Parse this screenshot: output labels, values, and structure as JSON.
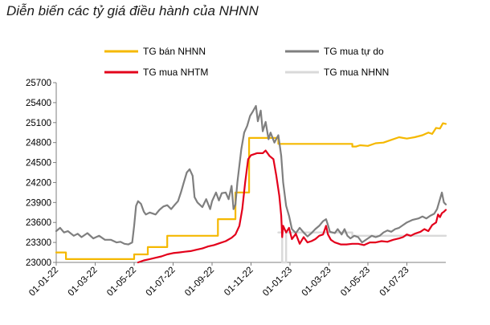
{
  "chart_data": {
    "type": "line",
    "title": "Diễn biến các tỷ giá điều hành của NHNN",
    "xlabel": "",
    "ylabel": "",
    "ylim": [
      23000,
      25700
    ],
    "yticks": [
      23000,
      23300,
      23600,
      23900,
      24200,
      24500,
      24800,
      25100,
      25400,
      25700
    ],
    "xlim": [
      0,
      20
    ],
    "xticks": [
      {
        "x": 0,
        "label": "01-01-22"
      },
      {
        "x": 2,
        "label": "01-03-22"
      },
      {
        "x": 4,
        "label": "01-05-22"
      },
      {
        "x": 6,
        "label": "01-07-22"
      },
      {
        "x": 8,
        "label": "01-09-22"
      },
      {
        "x": 10,
        "label": "01-11-22"
      },
      {
        "x": 12,
        "label": "01-01-23"
      },
      {
        "x": 14,
        "label": "01-03-23"
      },
      {
        "x": 16,
        "label": "01-05-23"
      },
      {
        "x": 18,
        "label": "01-07-23"
      }
    ],
    "legend_position": "top",
    "grid": false,
    "series": [
      {
        "name": "TG bán NHNN",
        "color": "#f5b800",
        "width": 2.2,
        "step": true,
        "points": [
          [
            0,
            23150
          ],
          [
            0.5,
            23150
          ],
          [
            0.5,
            23050
          ],
          [
            4,
            23050
          ],
          [
            4,
            23120
          ],
          [
            4.7,
            23120
          ],
          [
            4.7,
            23230
          ],
          [
            5.7,
            23230
          ],
          [
            5.7,
            23400
          ],
          [
            8.3,
            23400
          ],
          [
            8.3,
            23650
          ],
          [
            9.2,
            23650
          ],
          [
            9.2,
            24050
          ],
          [
            9.9,
            24050
          ],
          [
            9.9,
            24870
          ],
          [
            11.4,
            24870
          ],
          [
            11.4,
            24780
          ],
          [
            15.2,
            24780
          ],
          [
            15.2,
            24740
          ],
          [
            15.4,
            24740
          ],
          [
            15.6,
            24760
          ],
          [
            16,
            24750
          ],
          [
            16.4,
            24790
          ],
          [
            16.8,
            24800
          ],
          [
            17.2,
            24840
          ],
          [
            17.6,
            24880
          ],
          [
            18,
            24860
          ],
          [
            18.4,
            24880
          ],
          [
            18.8,
            24910
          ],
          [
            19.1,
            24950
          ],
          [
            19.3,
            24930
          ],
          [
            19.5,
            25020
          ],
          [
            19.7,
            25010
          ],
          [
            19.85,
            25090
          ],
          [
            20,
            25080
          ]
        ]
      },
      {
        "name": "TG mua tự do",
        "color": "#7f7f7f",
        "width": 2.2,
        "step": false,
        "points": [
          [
            0,
            23470
          ],
          [
            0.2,
            23520
          ],
          [
            0.4,
            23450
          ],
          [
            0.6,
            23470
          ],
          [
            0.9,
            23400
          ],
          [
            1.1,
            23430
          ],
          [
            1.3,
            23380
          ],
          [
            1.6,
            23440
          ],
          [
            1.9,
            23360
          ],
          [
            2.2,
            23400
          ],
          [
            2.5,
            23340
          ],
          [
            2.8,
            23340
          ],
          [
            3.1,
            23300
          ],
          [
            3.3,
            23310
          ],
          [
            3.5,
            23280
          ],
          [
            3.7,
            23270
          ],
          [
            3.9,
            23300
          ],
          [
            4,
            23550
          ],
          [
            4.1,
            23850
          ],
          [
            4.2,
            23920
          ],
          [
            4.35,
            23880
          ],
          [
            4.5,
            23760
          ],
          [
            4.6,
            23720
          ],
          [
            4.8,
            23750
          ],
          [
            5.1,
            23720
          ],
          [
            5.3,
            23790
          ],
          [
            5.5,
            23840
          ],
          [
            5.7,
            23860
          ],
          [
            5.9,
            23800
          ],
          [
            6.1,
            23870
          ],
          [
            6.25,
            23920
          ],
          [
            6.4,
            24050
          ],
          [
            6.55,
            24200
          ],
          [
            6.7,
            24350
          ],
          [
            6.85,
            24400
          ],
          [
            7,
            24300
          ],
          [
            7.1,
            23980
          ],
          [
            7.25,
            23900
          ],
          [
            7.5,
            23830
          ],
          [
            7.7,
            23950
          ],
          [
            7.9,
            23800
          ],
          [
            8,
            23920
          ],
          [
            8.2,
            24050
          ],
          [
            8.35,
            23930
          ],
          [
            8.5,
            24040
          ],
          [
            8.7,
            24050
          ],
          [
            8.85,
            23950
          ],
          [
            9,
            24150
          ],
          [
            9.1,
            23800
          ],
          [
            9.2,
            23870
          ],
          [
            9.3,
            24200
          ],
          [
            9.5,
            24700
          ],
          [
            9.65,
            24950
          ],
          [
            9.8,
            25050
          ],
          [
            9.95,
            25200
          ],
          [
            10.1,
            25270
          ],
          [
            10.25,
            25350
          ],
          [
            10.35,
            25120
          ],
          [
            10.5,
            25280
          ],
          [
            10.6,
            24970
          ],
          [
            10.75,
            25110
          ],
          [
            10.9,
            24850
          ],
          [
            11,
            24950
          ],
          [
            11.2,
            24800
          ],
          [
            11.4,
            24910
          ],
          [
            11.55,
            24600
          ],
          [
            11.65,
            24200
          ],
          [
            11.8,
            23850
          ],
          [
            11.95,
            23700
          ],
          [
            12.1,
            23500
          ],
          [
            12.3,
            23440
          ],
          [
            12.5,
            23520
          ],
          [
            12.7,
            23450
          ],
          [
            12.9,
            23390
          ],
          [
            13.1,
            23440
          ],
          [
            13.3,
            23500
          ],
          [
            13.5,
            23550
          ],
          [
            13.7,
            23620
          ],
          [
            13.85,
            23650
          ],
          [
            13.95,
            23560
          ],
          [
            14.05,
            23460
          ],
          [
            14.3,
            23440
          ],
          [
            14.45,
            23500
          ],
          [
            14.65,
            23420
          ],
          [
            14.8,
            23500
          ],
          [
            14.95,
            23400
          ],
          [
            15.1,
            23360
          ],
          [
            15.3,
            23400
          ],
          [
            15.5,
            23380
          ],
          [
            15.7,
            23300
          ],
          [
            16,
            23360
          ],
          [
            16.2,
            23400
          ],
          [
            16.4,
            23380
          ],
          [
            16.6,
            23400
          ],
          [
            16.8,
            23450
          ],
          [
            17,
            23480
          ],
          [
            17.2,
            23460
          ],
          [
            17.4,
            23500
          ],
          [
            17.6,
            23520
          ],
          [
            17.8,
            23560
          ],
          [
            18,
            23600
          ],
          [
            18.3,
            23640
          ],
          [
            18.6,
            23660
          ],
          [
            18.8,
            23690
          ],
          [
            19,
            23660
          ],
          [
            19.2,
            23700
          ],
          [
            19.4,
            23730
          ],
          [
            19.55,
            23800
          ],
          [
            19.7,
            23950
          ],
          [
            19.8,
            24050
          ],
          [
            19.9,
            23900
          ],
          [
            20,
            23870
          ]
        ]
      },
      {
        "name": "TG mua NHTM",
        "color": "#e3001b",
        "width": 2.2,
        "step": false,
        "points": [
          [
            4.2,
            23000
          ],
          [
            4.5,
            23030
          ],
          [
            4.8,
            23050
          ],
          [
            5.1,
            23070
          ],
          [
            5.4,
            23090
          ],
          [
            5.7,
            23120
          ],
          [
            6,
            23140
          ],
          [
            6.3,
            23150
          ],
          [
            6.6,
            23160
          ],
          [
            6.9,
            23170
          ],
          [
            7.2,
            23190
          ],
          [
            7.5,
            23210
          ],
          [
            7.8,
            23240
          ],
          [
            8.1,
            23260
          ],
          [
            8.4,
            23290
          ],
          [
            8.7,
            23320
          ],
          [
            9,
            23370
          ],
          [
            9.2,
            23420
          ],
          [
            9.4,
            23550
          ],
          [
            9.55,
            23800
          ],
          [
            9.7,
            24200
          ],
          [
            9.85,
            24550
          ],
          [
            10,
            24610
          ],
          [
            10.3,
            24640
          ],
          [
            10.6,
            24640
          ],
          [
            10.75,
            24680
          ],
          [
            10.95,
            24600
          ],
          [
            11.15,
            24550
          ],
          [
            11.3,
            24300
          ],
          [
            11.45,
            24000
          ],
          [
            11.55,
            23700
          ],
          [
            11.6,
            23380
          ],
          [
            11.65,
            23550
          ],
          [
            11.8,
            23450
          ],
          [
            11.95,
            23520
          ],
          [
            12.1,
            23350
          ],
          [
            12.3,
            23430
          ],
          [
            12.5,
            23280
          ],
          [
            12.7,
            23380
          ],
          [
            12.9,
            23300
          ],
          [
            13.1,
            23320
          ],
          [
            13.3,
            23350
          ],
          [
            13.5,
            23400
          ],
          [
            13.7,
            23420
          ],
          [
            13.85,
            23550
          ],
          [
            13.95,
            23420
          ],
          [
            14.1,
            23340
          ],
          [
            14.3,
            23300
          ],
          [
            14.6,
            23270
          ],
          [
            14.9,
            23270
          ],
          [
            15.2,
            23280
          ],
          [
            15.5,
            23280
          ],
          [
            15.8,
            23260
          ],
          [
            16.1,
            23300
          ],
          [
            16.4,
            23300
          ],
          [
            16.7,
            23320
          ],
          [
            17,
            23310
          ],
          [
            17.3,
            23340
          ],
          [
            17.6,
            23360
          ],
          [
            17.8,
            23380
          ],
          [
            18,
            23420
          ],
          [
            18.2,
            23400
          ],
          [
            18.4,
            23430
          ],
          [
            18.7,
            23460
          ],
          [
            18.9,
            23500
          ],
          [
            19.1,
            23470
          ],
          [
            19.3,
            23560
          ],
          [
            19.5,
            23600
          ],
          [
            19.6,
            23720
          ],
          [
            19.7,
            23680
          ],
          [
            19.8,
            23740
          ],
          [
            19.9,
            23760
          ],
          [
            20,
            23790
          ]
        ]
      },
      {
        "name": "TG mua NHNN",
        "color": "#d9d9d9",
        "width": 2.4,
        "step": true,
        "points": [
          [
            11.4,
            23450
          ],
          [
            11.6,
            23450
          ],
          [
            11.6,
            23000
          ],
          [
            11.8,
            23000
          ],
          [
            11.8,
            23450
          ],
          [
            15.2,
            23450
          ],
          [
            15.2,
            23400
          ],
          [
            20,
            23400
          ]
        ]
      }
    ]
  }
}
